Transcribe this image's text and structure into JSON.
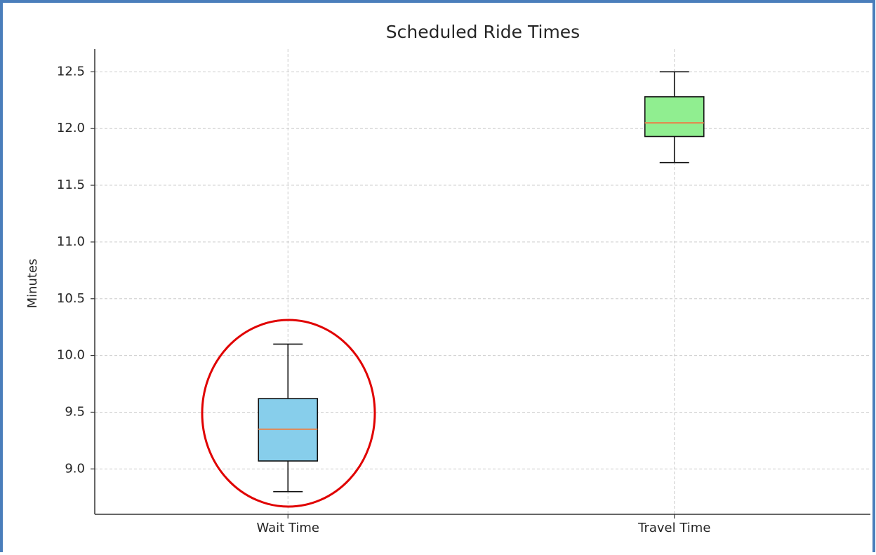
{
  "chart_data": {
    "type": "box",
    "title": "Scheduled Ride Times",
    "ylabel": "Minutes",
    "categories": [
      "Wait Time",
      "Travel Time"
    ],
    "colors": [
      "#87ceeb",
      "#90ee90"
    ],
    "median_color": "#e8834a",
    "boxes": [
      {
        "low": 8.8,
        "q1": 9.07,
        "median": 9.35,
        "q3": 9.62,
        "high": 10.1
      },
      {
        "low": 11.7,
        "q1": 11.93,
        "median": 12.05,
        "q3": 12.28,
        "high": 12.5
      }
    ],
    "ylim": [
      8.6,
      12.7
    ],
    "yticks": [
      {
        "value": 9,
        "label": "9.0"
      },
      9.5,
      {
        "value": 10,
        "label": "10.0"
      },
      10.5,
      {
        "value": 11,
        "label": "11.0"
      },
      11.5,
      {
        "value": 12,
        "label": "12.0"
      },
      12.5
    ],
    "grid": true
  }
}
